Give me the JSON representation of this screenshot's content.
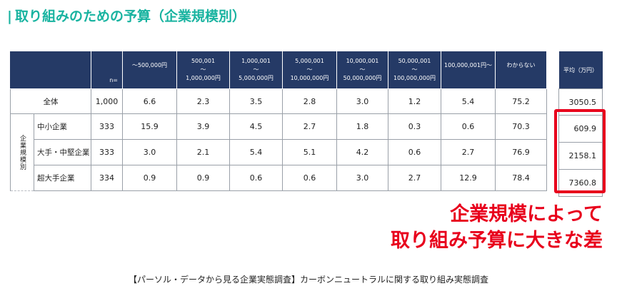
{
  "title": "取り組みのための予算（企業規模別）",
  "title_bar": "|",
  "chart_data": {
    "type": "table",
    "title": "取り組みのための予算（企業規模別）",
    "columns": [
      {
        "line1": "〜500,000円",
        "line2": "",
        "line3": ""
      },
      {
        "line1": "500,001",
        "line2": "〜",
        "line3": "1,000,000円"
      },
      {
        "line1": "1,000,001",
        "line2": "〜",
        "line3": "5,000,000円"
      },
      {
        "line1": "5,000,001",
        "line2": "〜",
        "line3": "10,000,000円"
      },
      {
        "line1": "10,000,001",
        "line2": "〜",
        "line3": "50,000,000円"
      },
      {
        "line1": "50,000,001",
        "line2": "〜",
        "line3": "100,000,000円"
      },
      {
        "line1": "100,000,001円〜",
        "line2": "",
        "line3": ""
      },
      {
        "line1": "わからない",
        "line2": "",
        "line3": ""
      }
    ],
    "n_header": "n=",
    "average_header": "平均（万円）",
    "segment_label": "企業規模別",
    "rows": [
      {
        "label": "全体",
        "n": "1,000",
        "values": [
          "6.6",
          "2.3",
          "3.5",
          "2.8",
          "3.0",
          "1.2",
          "5.4",
          "75.2"
        ],
        "average": "3050.5"
      },
      {
        "label": "中小企業",
        "n": "333",
        "values": [
          "15.9",
          "3.9",
          "4.5",
          "2.7",
          "1.8",
          "0.3",
          "0.6",
          "70.3"
        ],
        "average": "609.9"
      },
      {
        "label": "大手・中堅企業",
        "n": "333",
        "values": [
          "3.0",
          "2.1",
          "5.4",
          "5.1",
          "4.2",
          "0.6",
          "2.7",
          "76.9"
        ],
        "average": "2158.1"
      },
      {
        "label": "超大手企業",
        "n": "334",
        "values": [
          "0.9",
          "0.9",
          "0.6",
          "0.6",
          "3.0",
          "2.7",
          "12.9",
          "78.4"
        ],
        "average": "7360.8"
      }
    ]
  },
  "callout": {
    "line1": "企業規模によって",
    "line2": "取り組み予算に大きな差",
    "color": "#e8001c"
  },
  "source": "【パーソル・データから見る企業実態調査】カーボンニュートラルに関する取り組み実態調査",
  "colors": {
    "title": "#18b3a0",
    "header": "#253a66",
    "highlight": "#e8001c"
  }
}
